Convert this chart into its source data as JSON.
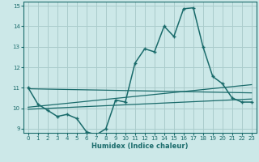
{
  "xlabel": "Humidex (Indice chaleur)",
  "xlim": [
    -0.5,
    23.5
  ],
  "ylim": [
    8.8,
    15.2
  ],
  "yticks": [
    9,
    10,
    11,
    12,
    13,
    14,
    15
  ],
  "xticks": [
    0,
    1,
    2,
    3,
    4,
    5,
    6,
    7,
    8,
    9,
    10,
    11,
    12,
    13,
    14,
    15,
    16,
    17,
    18,
    19,
    20,
    21,
    22,
    23
  ],
  "bg_color": "#cce8e8",
  "grid_color": "#aacccc",
  "line_color": "#1a6b6b",
  "main_series_x": [
    0,
    1,
    2,
    3,
    4,
    5,
    6,
    7,
    8,
    9,
    10,
    11,
    12,
    13,
    14,
    15,
    16,
    17,
    18,
    19,
    20,
    21,
    22,
    23
  ],
  "main_series_y": [
    11.0,
    10.2,
    9.9,
    9.6,
    9.7,
    9.5,
    8.85,
    8.7,
    9.0,
    10.4,
    10.3,
    12.2,
    12.9,
    12.75,
    14.0,
    13.5,
    14.85,
    14.9,
    13.0,
    11.55,
    11.2,
    10.5,
    10.3,
    10.3
  ],
  "trend1_x": [
    0,
    23
  ],
  "trend1_y": [
    10.95,
    10.75
  ],
  "trend2_x": [
    0,
    23
  ],
  "trend2_y": [
    10.05,
    11.15
  ],
  "trend3_x": [
    0,
    23
  ],
  "trend3_y": [
    9.95,
    10.45
  ]
}
